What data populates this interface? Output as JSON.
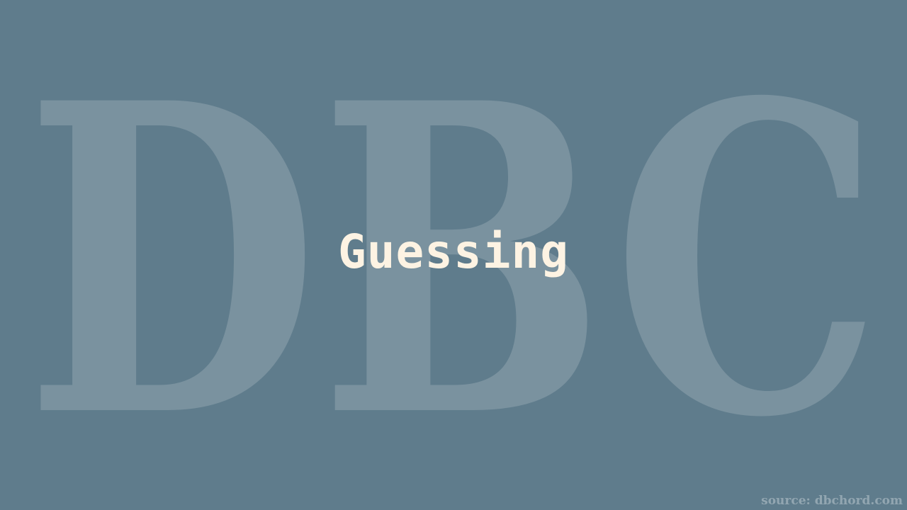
{
  "background_color": "#5f7c8c",
  "watermark": {
    "text": "DBC"
  },
  "title": "Guessing",
  "source_credit": "source: dbchord.com",
  "colors": {
    "title": "#fdf3e3"
  }
}
